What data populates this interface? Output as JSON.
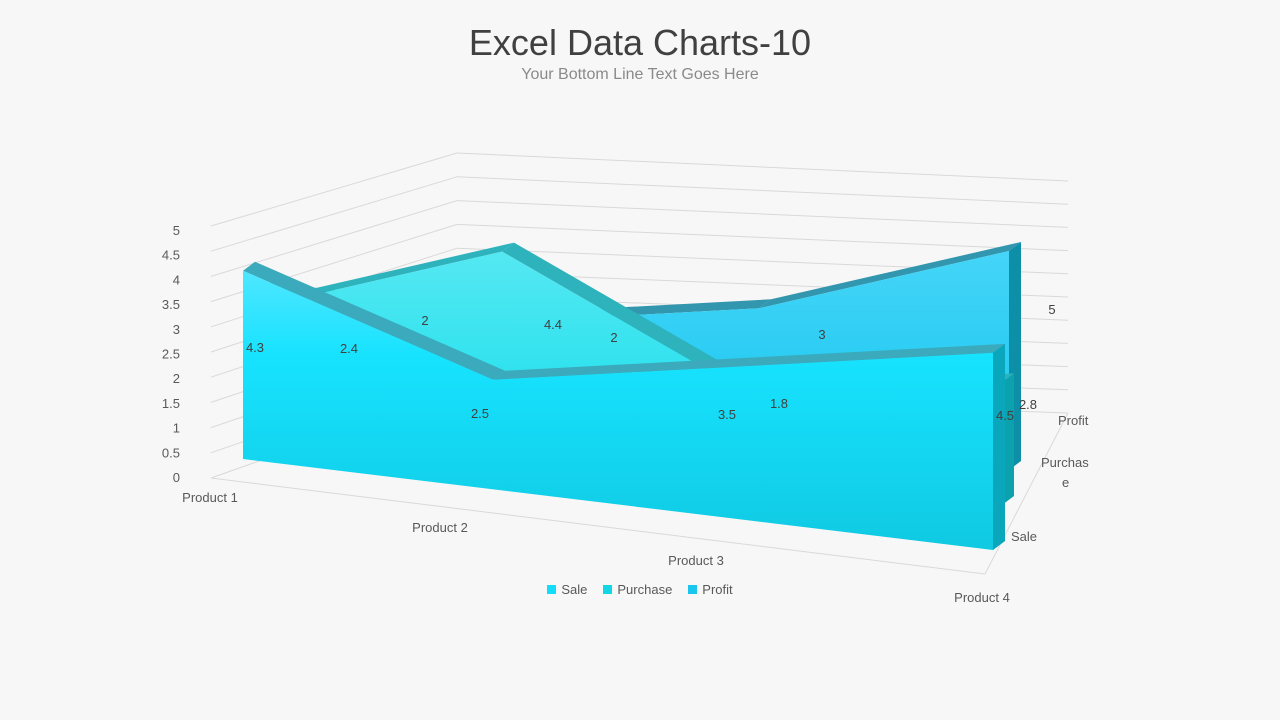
{
  "title": "Excel Data Charts-10",
  "subtitle": "Your Bottom Line Text Goes Here",
  "colors": {
    "sale": "#14ddfb",
    "purchase": "#12d6e6",
    "profit": "#1ac6ee",
    "grid": "#d9d9d9",
    "text": "#595959"
  },
  "chart_data": {
    "type": "area",
    "subtype": "3d-area",
    "categories": [
      "Product 1",
      "Product 2",
      "Product 3",
      "Product 4"
    ],
    "series": [
      {
        "name": "Sale",
        "values": [
          4.3,
          2.5,
          3.5,
          4.5
        ]
      },
      {
        "name": "Purchase",
        "values": [
          2.4,
          4.4,
          1.8,
          2.8
        ]
      },
      {
        "name": "Profit",
        "values": [
          2,
          2,
          3,
          5
        ]
      }
    ],
    "series_axis_labels": [
      "Sale",
      "Purchase",
      "Profit"
    ],
    "yticks": [
      "0",
      "0.5",
      "1",
      "1.5",
      "2",
      "2.5",
      "3",
      "3.5",
      "4",
      "4.5",
      "5"
    ],
    "ylim": [
      0,
      5
    ],
    "grid": true,
    "legend_position": "bottom"
  }
}
